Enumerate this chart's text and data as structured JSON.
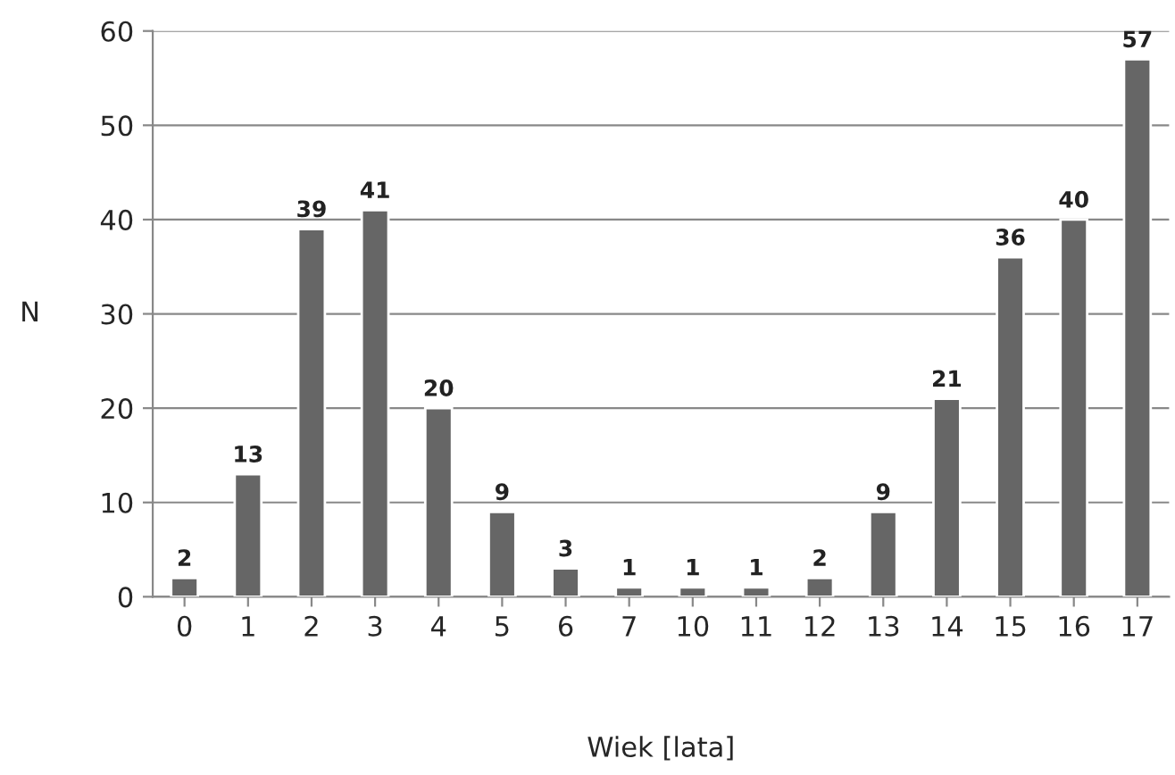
{
  "chart_data": {
    "type": "bar",
    "xlabel": "Wiek [lata]",
    "ylabel": "N",
    "categories": [
      "0",
      "1",
      "2",
      "3",
      "4",
      "5",
      "6",
      "7",
      "10",
      "11",
      "12",
      "13",
      "14",
      "15",
      "16",
      "17"
    ],
    "values": [
      2,
      13,
      39,
      41,
      20,
      9,
      3,
      1,
      1,
      1,
      2,
      9,
      21,
      36,
      40,
      57
    ],
    "color": "#666666",
    "ylim": [
      0,
      60
    ],
    "yticks": [
      0,
      10,
      20,
      30,
      40,
      50,
      60
    ],
    "grid": "y",
    "data_labels": true
  }
}
